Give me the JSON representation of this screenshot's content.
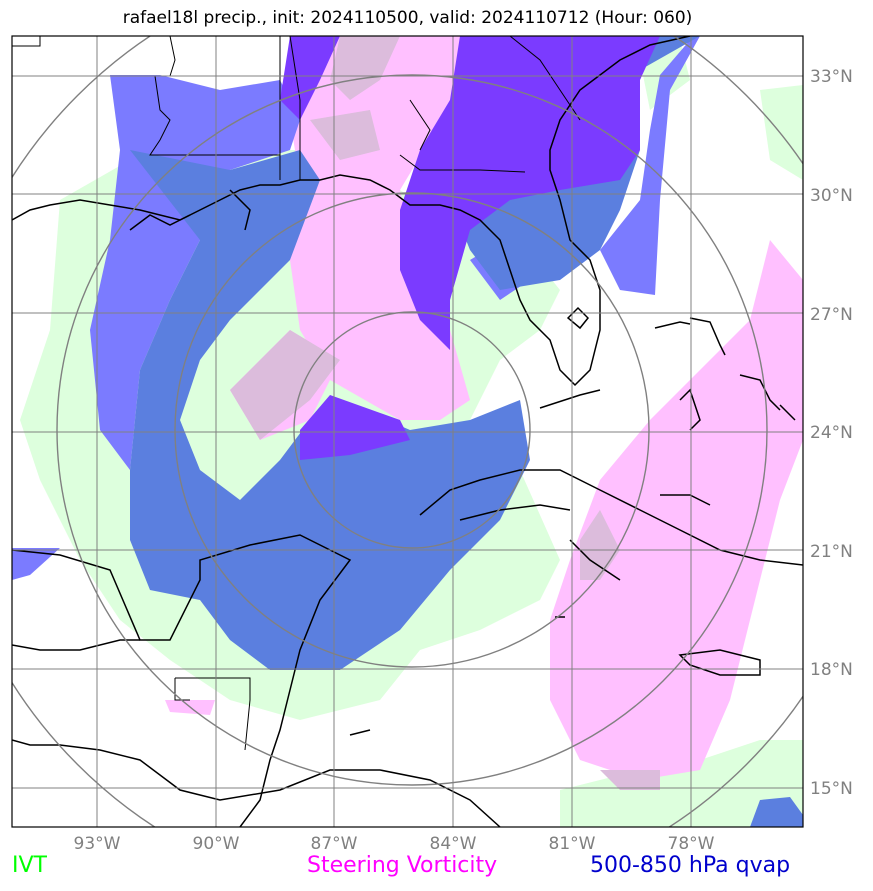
{
  "title": "rafael18l precip., init: 2024110500, valid: 2024110712 (Hour: 060)",
  "lat_labels": [
    "33°N",
    "30°N",
    "27°N",
    "24°N",
    "21°N",
    "18°N",
    "15°N"
  ],
  "lon_labels": [
    "93°W",
    "90°W",
    "87°W",
    "84°W",
    "81°W",
    "78°W"
  ],
  "legend": {
    "ivt": "IVT",
    "steering_vorticity": "Steering Vorticity",
    "qvap": "500-850 hPa qvap"
  },
  "colors": {
    "ivt": "#00ff00",
    "ivt_fill": "#ddffdd",
    "vorticity": "#ff00ff",
    "vorticity_fill": "#ffc0ff",
    "qvap": "#0000cc",
    "qvap_light": "#7b7bff",
    "qvap_medium": "#5b7fdf",
    "qvap_dark": "#7b3bff",
    "overlap": "#dcbcdc",
    "gridline": "#808080",
    "coastline": "#000000"
  },
  "map": {
    "lon_range": [
      "95°W",
      "75°W"
    ],
    "lat_range": [
      "14°N",
      "34°N"
    ],
    "range_rings": 4
  }
}
